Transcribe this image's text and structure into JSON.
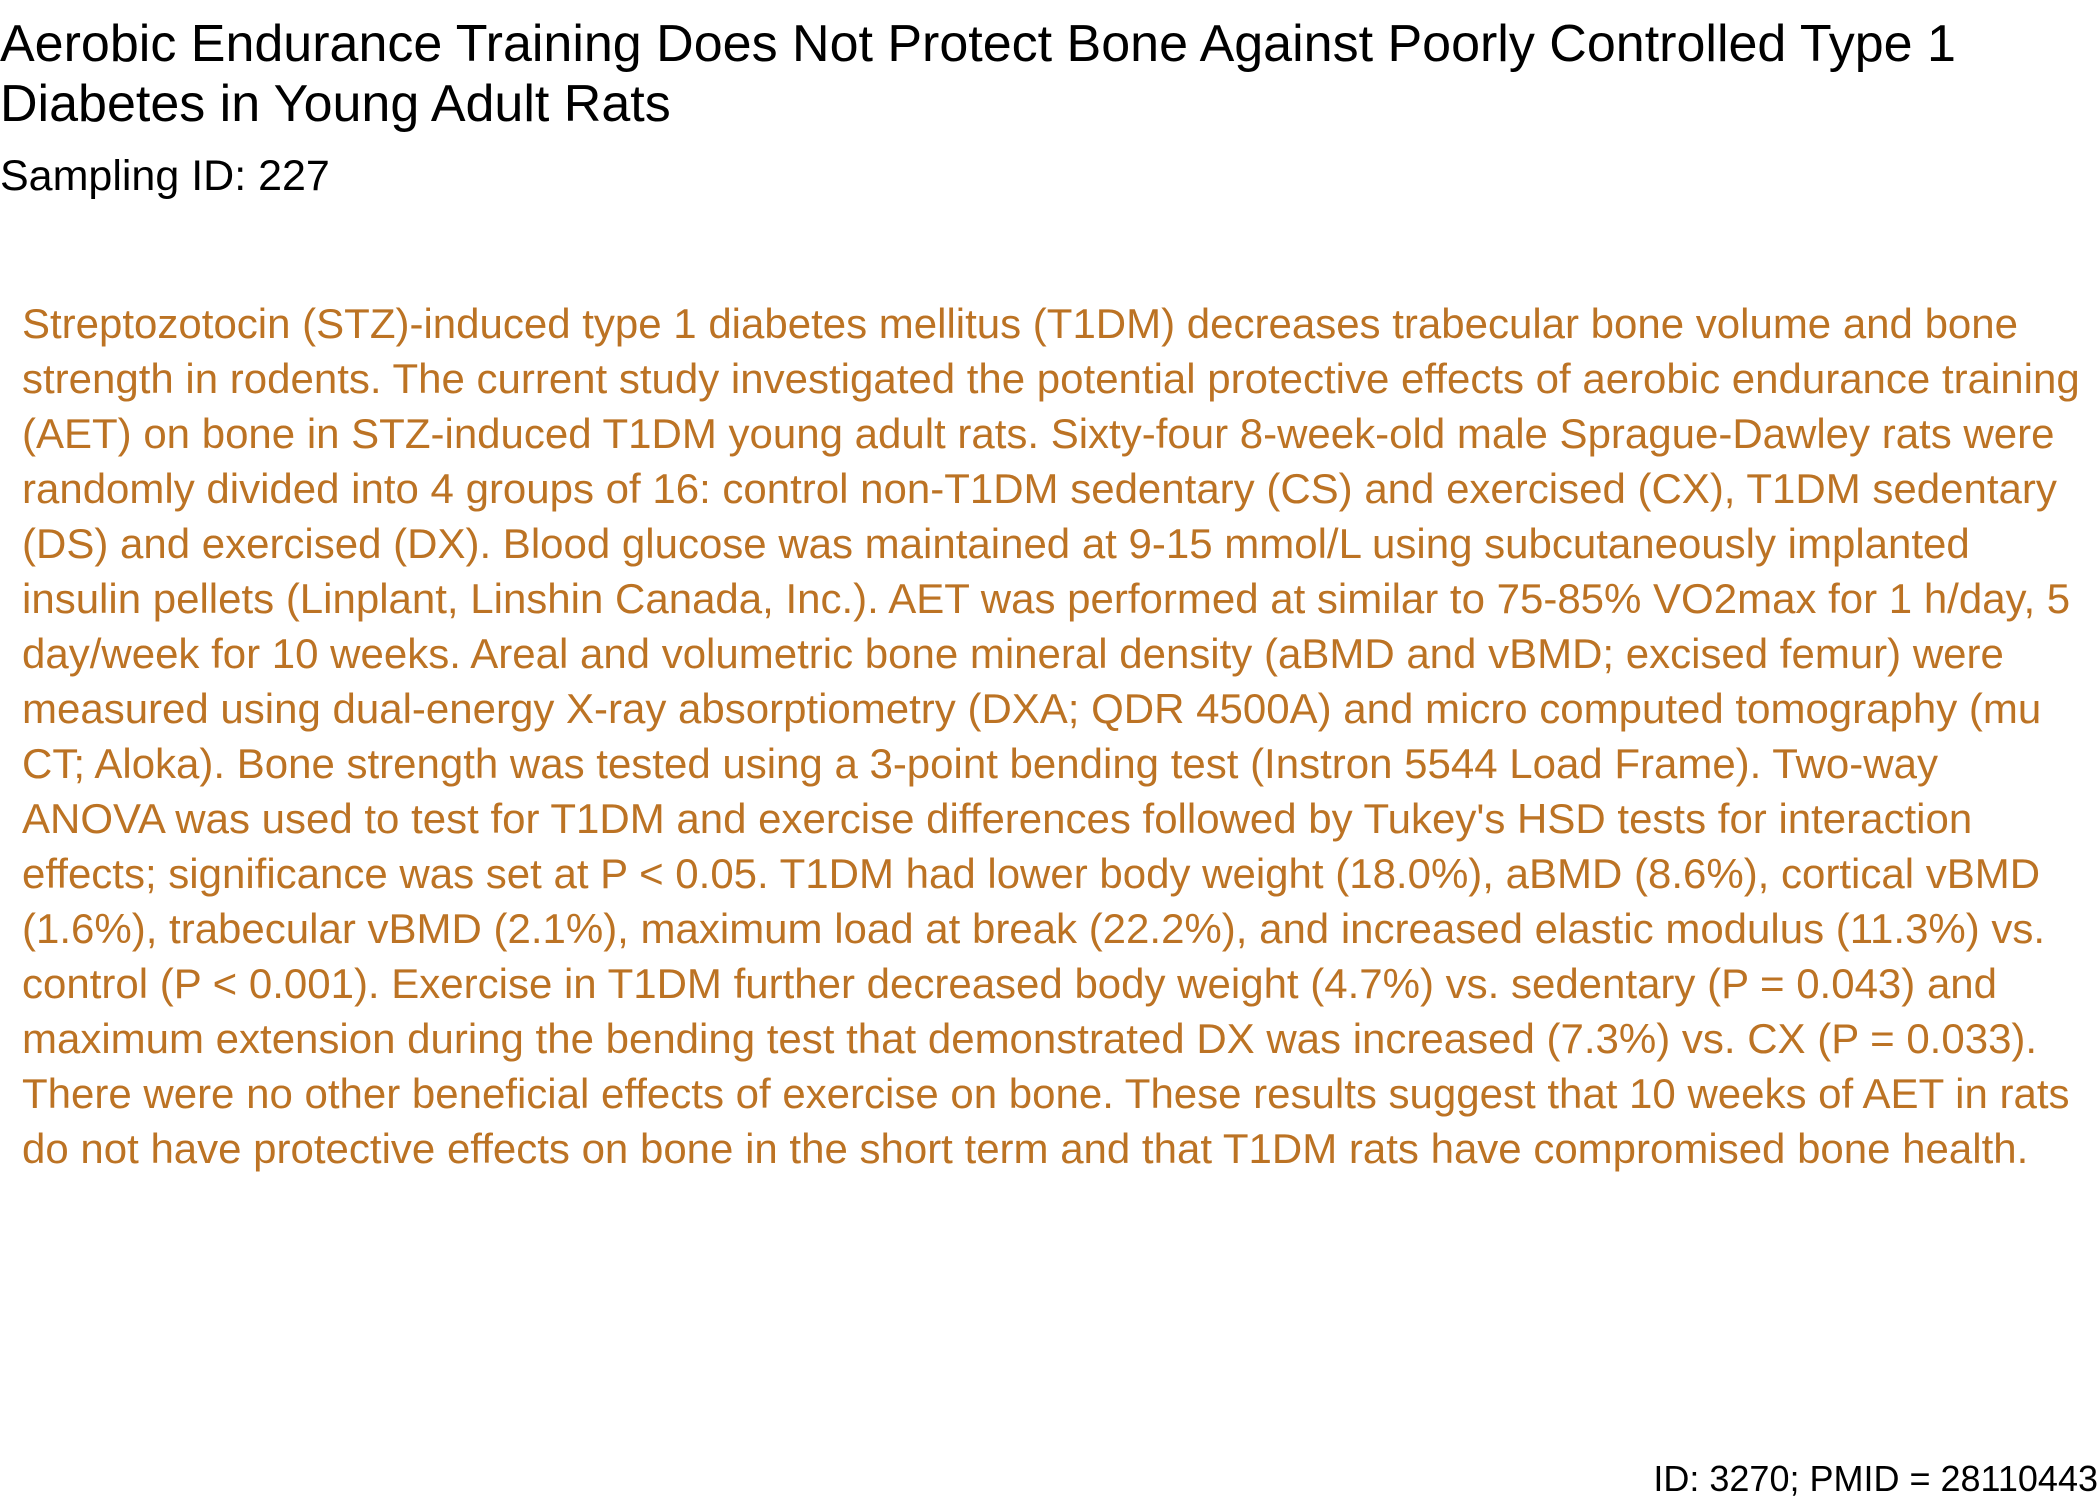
{
  "paper": {
    "title": "Aerobic Endurance Training Does Not Protect Bone Against Poorly Controlled Type 1 Diabetes in Young Adult Rats",
    "sampling_id": "Sampling ID: 227",
    "abstract": "Streptozotocin (STZ)-induced type 1 diabetes mellitus (T1DM) decreases trabecular bone volume and bone strength in rodents. The current study investigated the potential protective effects of aerobic endurance training (AET) on bone in STZ-induced T1DM young adult rats. Sixty-four 8-week-old male Sprague-Dawley rats were randomly divided into 4 groups of 16: control non-T1DM sedentary (CS) and exercised (CX), T1DM sedentary (DS) and exercised (DX). Blood glucose was maintained at 9-15 mmol/L using subcutaneously implanted insulin pellets (Linplant, Linshin Canada, Inc.). AET was performed at similar to 75-85% VO2max for 1 h/day, 5 day/week for 10 weeks. Areal and volumetric bone mineral density (aBMD and vBMD; excised femur) were measured using dual-energy X-ray absorptiometry (DXA; QDR 4500A) and micro computed tomography (mu CT; Aloka). Bone strength was tested using a 3-point bending test (Instron 5544 Load Frame). Two-way ANOVA was used to test for T1DM and exercise differences followed by Tukey's HSD tests for interaction effects; significance was set at P < 0.05. T1DM had lower body weight (18.0%), aBMD (8.6%), cortical vBMD (1.6%), trabecular vBMD (2.1%), maximum load at break (22.2%), and increased elastic modulus (11.3%) vs. control (P < 0.001). Exercise in T1DM further decreased body weight (4.7%) vs. sedentary (P = 0.043) and maximum extension during the bending test that demonstrated DX was increased (7.3%) vs. CX (P = 0.033). There were no other beneficial effects of exercise on bone. These results suggest that 10 weeks of AET in rats do not have protective effects on bone in the short term and that T1DM rats have compromised bone health.",
    "footer_id": "ID: 3270; PMID = 28110443"
  },
  "colors": {
    "title_text": "#000000",
    "abstract_text": "#bc7324",
    "background": "#ffffff"
  }
}
